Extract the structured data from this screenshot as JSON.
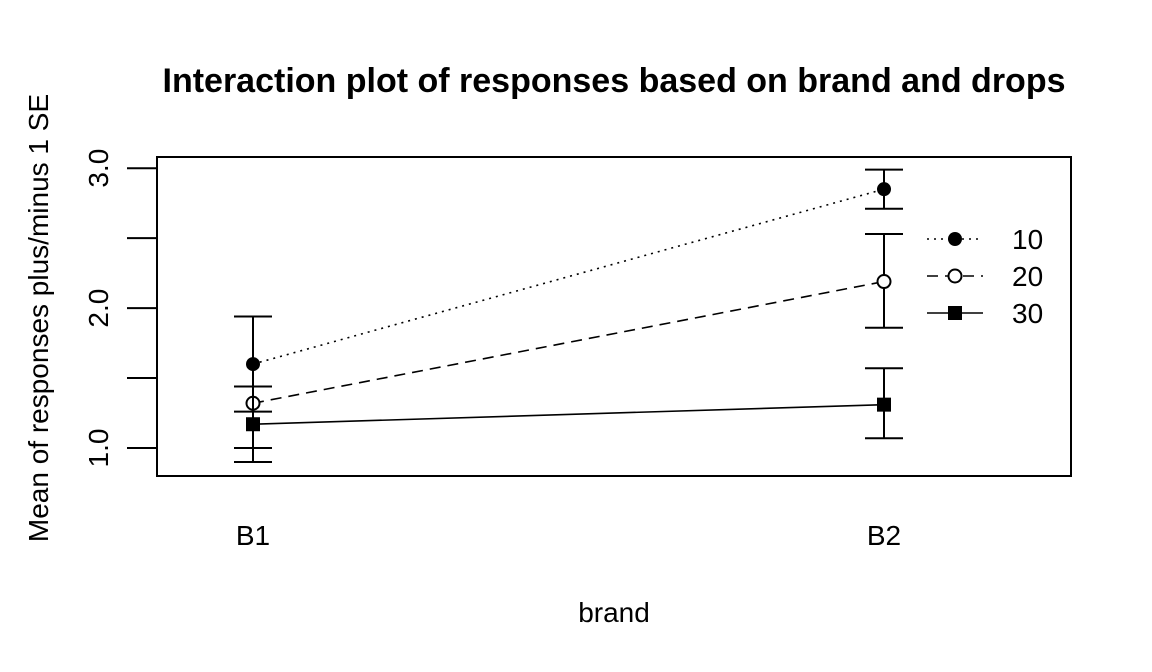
{
  "chart_data": {
    "type": "line",
    "title": "Interaction plot of responses based on brand and drops",
    "xlabel": "brand",
    "ylabel": "Mean of  responses plus/minus 1 SE",
    "categories": [
      "B1",
      "B2"
    ],
    "ylim": [
      0.8,
      3.08
    ],
    "yticks": [
      1.0,
      1.5,
      2.0,
      2.5,
      3.0
    ],
    "ytick_labels": [
      "1.0",
      "",
      "2.0",
      "",
      "3.0"
    ],
    "grid": false,
    "legend_position": "right",
    "series": [
      {
        "name": "10",
        "line_style": "dotted",
        "marker": "filled-circle",
        "values": [
          1.6,
          2.85
        ],
        "lower": [
          1.26,
          2.71
        ],
        "upper": [
          1.94,
          2.99
        ]
      },
      {
        "name": "20",
        "line_style": "dashed",
        "marker": "open-circle",
        "values": [
          1.32,
          2.19
        ],
        "lower": [
          1.0,
          1.86
        ],
        "upper": [
          1.44,
          2.53
        ]
      },
      {
        "name": "30",
        "line_style": "solid",
        "marker": "filled-square",
        "values": [
          1.17,
          1.31
        ],
        "lower": [
          0.9,
          1.07
        ],
        "upper": [
          1.44,
          1.57
        ]
      }
    ]
  }
}
